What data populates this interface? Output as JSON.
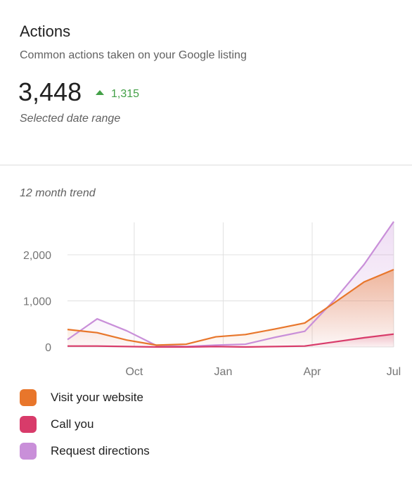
{
  "card": {
    "title": "Actions",
    "subtitle": "Common actions taken on your Google listing",
    "total": "3,448",
    "delta": "1,315",
    "range": "Selected date range",
    "trend_label": "12 month trend"
  },
  "colors": {
    "visit": "#e8762b",
    "call": "#d83b6a",
    "directions": "#c98fd9",
    "delta": "#43a047"
  },
  "chart_data": {
    "type": "area",
    "title": "12 month trend",
    "x_tick_labels": [
      "Oct",
      "Jan",
      "Apr",
      "Jul"
    ],
    "y_tick_labels": [
      "0",
      "1,000",
      "2,000"
    ],
    "ylim": [
      0,
      2700
    ],
    "grid": true,
    "legend_position": "bottom",
    "series": [
      {
        "name": "Visit your website",
        "values": [
          380,
          310,
          150,
          40,
          60,
          220,
          270,
          390,
          520,
          960,
          1410,
          1680
        ]
      },
      {
        "name": "Call you",
        "values": [
          20,
          20,
          10,
          0,
          0,
          10,
          0,
          10,
          20,
          110,
          200,
          280
        ]
      },
      {
        "name": "Request directions",
        "values": [
          160,
          610,
          350,
          30,
          10,
          40,
          60,
          210,
          340,
          1020,
          1790,
          2720
        ]
      }
    ]
  }
}
